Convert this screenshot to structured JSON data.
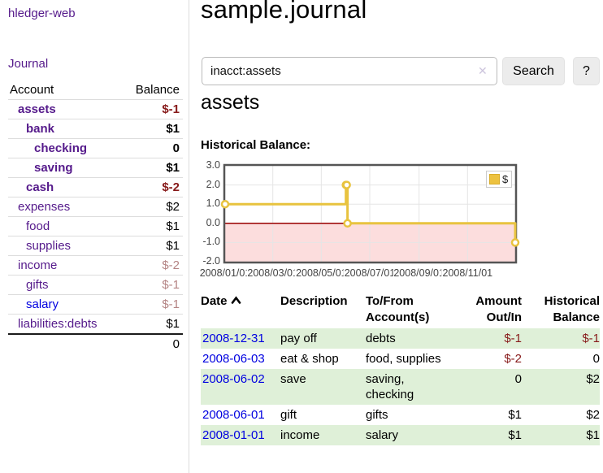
{
  "app": {
    "brand": "hledger-web",
    "nav_journal": "Journal"
  },
  "sidebar": {
    "col_account": "Account",
    "col_balance": "Balance",
    "accounts": [
      {
        "name": "assets",
        "depth": 1,
        "bold": true,
        "link": "purple",
        "balance": "$-1",
        "bal_class": "neg"
      },
      {
        "name": "bank",
        "depth": 2,
        "bold": true,
        "link": "purple",
        "balance": "$1",
        "bal_class": "pos"
      },
      {
        "name": "checking",
        "depth": 3,
        "bold": true,
        "link": "purple",
        "balance": "0",
        "bal_class": "pos"
      },
      {
        "name": "saving",
        "depth": 3,
        "bold": true,
        "link": "purple",
        "balance": "$1",
        "bal_class": "pos"
      },
      {
        "name": "cash",
        "depth": 2,
        "bold": true,
        "link": "purple",
        "balance": "$-2",
        "bal_class": "neg"
      },
      {
        "name": "expenses",
        "depth": 1,
        "bold": false,
        "link": "purple",
        "balance": "$2",
        "bal_class": "pos"
      },
      {
        "name": "food",
        "depth": 2,
        "bold": false,
        "link": "purple",
        "balance": "$1",
        "bal_class": "pos"
      },
      {
        "name": "supplies",
        "depth": 2,
        "bold": false,
        "link": "purple",
        "balance": "$1",
        "bal_class": "pos"
      },
      {
        "name": "income",
        "depth": 1,
        "bold": false,
        "link": "purple",
        "balance": "$-2",
        "bal_class": "negdim"
      },
      {
        "name": "gifts",
        "depth": 2,
        "bold": false,
        "link": "purple",
        "balance": "$-1",
        "bal_class": "negdim"
      },
      {
        "name": "salary",
        "depth": 2,
        "bold": false,
        "link": "blue",
        "balance": "$-1",
        "bal_class": "negdim"
      },
      {
        "name": "liabilities:debts",
        "depth": 1,
        "bold": false,
        "link": "purple",
        "balance": "$1",
        "bal_class": "pos"
      }
    ],
    "total": "0"
  },
  "header": {
    "title": "sample.journal"
  },
  "search": {
    "value": "inacct:assets",
    "clear_icon": "✕",
    "button_label": "Search",
    "help_label": "?"
  },
  "account_page": {
    "title": "assets",
    "chart_label": "Historical Balance:"
  },
  "chart_data": {
    "type": "line",
    "step": true,
    "title": "Historical Balance:",
    "series": [
      {
        "name": "$",
        "color": "#e8c33f",
        "points": [
          [
            "2008-01-01",
            1
          ],
          [
            "2008-06-01",
            2
          ],
          [
            "2008-06-02",
            2
          ],
          [
            "2008-06-03",
            0
          ],
          [
            "2008-12-31",
            -1
          ]
        ]
      }
    ],
    "ylim": [
      -2,
      3
    ],
    "yticks": [
      "3.0",
      "2.0",
      "1.0",
      "0.0",
      "-1.0",
      "-2.0"
    ],
    "xticks": [
      "2008/01/01",
      "2008/03/01",
      "2008/05/01",
      "2008/07/01",
      "2008/09/01",
      "2008/11/01"
    ],
    "grid": true,
    "grid_color": "#e5e5e5",
    "border_color": "#555555",
    "negative_region_color": "#fcdddd",
    "zero_line_color": "#990000",
    "marker_fill": "#ffffff",
    "legend": {
      "label": "$",
      "position": "top-right"
    }
  },
  "register": {
    "headers": {
      "date": "Date",
      "description": "Description",
      "tofrom": "To/From\nAccount(s)",
      "amount": "Amount\nOut/In",
      "balance": "Historical\nBalance"
    },
    "rows": [
      {
        "date": "2008-12-31",
        "description": "pay off",
        "accounts": "debts",
        "amount": "$-1",
        "amount_neg": true,
        "balance": "$-1",
        "balance_neg": true,
        "shaded": true
      },
      {
        "date": "2008-06-03",
        "description": "eat & shop",
        "accounts": "food, supplies",
        "amount": "$-2",
        "amount_neg": true,
        "balance": "0",
        "balance_neg": false,
        "shaded": false
      },
      {
        "date": "2008-06-02",
        "description": "save",
        "accounts": "saving,\nchecking",
        "amount": "0",
        "amount_neg": false,
        "balance": "$2",
        "balance_neg": false,
        "shaded": true
      },
      {
        "date": "2008-06-01",
        "description": "gift",
        "accounts": "gifts",
        "amount": "$1",
        "amount_neg": false,
        "balance": "$2",
        "balance_neg": false,
        "shaded": false
      },
      {
        "date": "2008-01-01",
        "description": "income",
        "accounts": "salary",
        "amount": "$1",
        "amount_neg": false,
        "balance": "$1",
        "balance_neg": false,
        "shaded": true
      }
    ]
  },
  "colors": {
    "link_purple": "#551a8b",
    "link_blue": "#0000e0",
    "negative_strong": "#871a1a",
    "negative_dim": "#b48484",
    "row_shaded": "#dff0d8"
  }
}
